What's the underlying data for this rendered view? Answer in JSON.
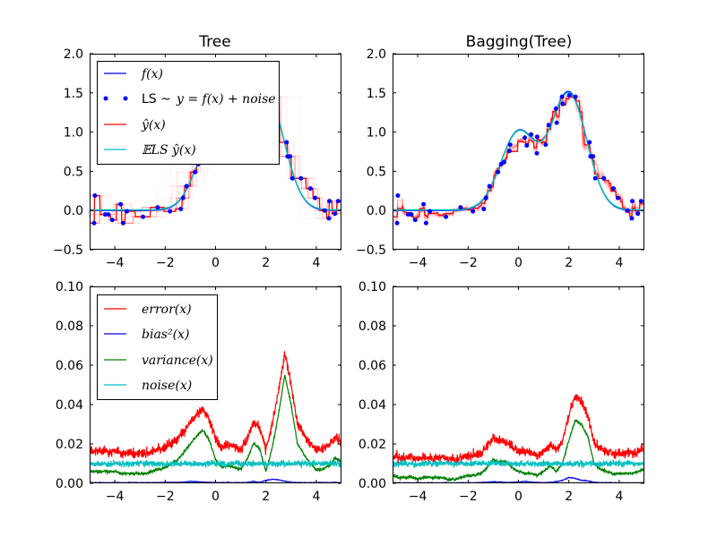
{
  "chart_data": [
    {
      "type": "line",
      "title": "Tree",
      "xlim": [
        -5,
        5
      ],
      "ylim": [
        -0.5,
        2.0
      ],
      "xticks": [
        "−4",
        "−2",
        "0",
        "2",
        "4"
      ],
      "yticks": [
        "−0.5",
        "0.0",
        "0.5",
        "1.0",
        "1.5",
        "2.0"
      ],
      "legend": {
        "placement": "upper-left",
        "entries": [
          {
            "label": "f(x)",
            "color": "#0000ff",
            "style": "line"
          },
          {
            "label_prefix": "LS ~ ",
            "label": "y = f(x) + noise",
            "color": "#0000ff",
            "style": "points"
          },
          {
            "label": "ŷ(x)",
            "color": "#ff0000",
            "style": "line"
          },
          {
            "label": "𝔼LS ŷ(x)",
            "color": "#00bfbf",
            "style": "line"
          }
        ]
      },
      "function": "exp(-x^2) + 1.5*exp(-(x-2)^2)",
      "estimator": "tree"
    },
    {
      "type": "line",
      "title": "Bagging(Tree)",
      "xlim": [
        -5,
        5
      ],
      "ylim": [
        -0.5,
        2.0
      ],
      "xticks": [
        "−4",
        "−2",
        "0",
        "2",
        "4"
      ],
      "yticks": [
        "−0.5",
        "0.0",
        "0.5",
        "1.0",
        "1.5",
        "2.0"
      ],
      "function": "exp(-x^2) + 1.5*exp(-(x-2)^2)",
      "estimator": "bagging"
    },
    {
      "type": "line",
      "xlim": [
        -5,
        5
      ],
      "ylim": [
        0,
        0.1
      ],
      "xticks": [
        "−4",
        "−2",
        "0",
        "2",
        "4"
      ],
      "yticks": [
        "0.00",
        "0.02",
        "0.04",
        "0.06",
        "0.08",
        "0.10"
      ],
      "legend": {
        "placement": "upper-left",
        "entries": [
          {
            "label": "error(x)",
            "color": "#ff0000"
          },
          {
            "label": "bias²(x)",
            "color": "#0000ff"
          },
          {
            "label": "variance(x)",
            "color": "#008000"
          },
          {
            "label": "noise(x)",
            "color": "#00bfbf"
          }
        ]
      },
      "x_grid": [
        -5,
        -4.75,
        -4.5,
        -4.25,
        -4,
        -3.75,
        -3.5,
        -3.25,
        -3,
        -2.75,
        -2.5,
        -2.25,
        -2,
        -1.75,
        -1.5,
        -1.25,
        -1,
        -0.75,
        -0.5,
        -0.25,
        0,
        0.25,
        0.5,
        0.75,
        1,
        1.25,
        1.5,
        1.75,
        2,
        2.25,
        2.5,
        2.75,
        3,
        3.25,
        3.5,
        3.75,
        4,
        4.25,
        4.5,
        4.75,
        5
      ],
      "variance": [
        0.006,
        0.006,
        0.006,
        0.006,
        0.006,
        0.005,
        0.005,
        0.005,
        0.005,
        0.005,
        0.006,
        0.007,
        0.008,
        0.01,
        0.012,
        0.016,
        0.02,
        0.024,
        0.027,
        0.022,
        0.012,
        0.008,
        0.009,
        0.008,
        0.007,
        0.012,
        0.02,
        0.018,
        0.006,
        0.018,
        0.035,
        0.055,
        0.04,
        0.02,
        0.015,
        0.01,
        0.007,
        0.007,
        0.009,
        0.013,
        0.011
      ],
      "bias2": [
        0.0003,
        0.0003,
        0.0003,
        0.0003,
        0.0003,
        0.0003,
        0.0003,
        0.0003,
        0.0003,
        0.0003,
        0.0003,
        0.0003,
        0.0005,
        0.0004,
        0.0004,
        0.0006,
        0.001,
        0.0008,
        0.0006,
        0.0004,
        0.0004,
        0.0003,
        0.0004,
        0.0003,
        0.0003,
        0.0004,
        0.001,
        0.0004,
        0.0015,
        0.002,
        0.0018,
        0.001,
        0.0005,
        0.0003,
        0.0003,
        0.0003,
        0.0003,
        0.0003,
        0.0003,
        0.0004,
        0.0003
      ],
      "noise": 0.01
    },
    {
      "type": "line",
      "xlim": [
        -5,
        5
      ],
      "ylim": [
        0,
        0.1
      ],
      "xticks": [
        "−4",
        "−2",
        "0",
        "2",
        "4"
      ],
      "yticks": [
        "0.00",
        "0.02",
        "0.04",
        "0.06",
        "0.08",
        "0.10"
      ],
      "x_grid": [
        -5,
        -4.75,
        -4.5,
        -4.25,
        -4,
        -3.75,
        -3.5,
        -3.25,
        -3,
        -2.75,
        -2.5,
        -2.25,
        -2,
        -1.75,
        -1.5,
        -1.25,
        -1,
        -0.75,
        -0.5,
        -0.25,
        0,
        0.25,
        0.5,
        0.75,
        1,
        1.25,
        1.5,
        1.75,
        2,
        2.25,
        2.5,
        2.75,
        3,
        3.25,
        3.5,
        3.75,
        4,
        4.25,
        4.5,
        4.75,
        5
      ],
      "variance": [
        0.004,
        0.003,
        0.003,
        0.003,
        0.002,
        0.003,
        0.003,
        0.003,
        0.003,
        0.002,
        0.002,
        0.003,
        0.004,
        0.004,
        0.005,
        0.008,
        0.012,
        0.011,
        0.011,
        0.008,
        0.006,
        0.005,
        0.005,
        0.004,
        0.006,
        0.009,
        0.006,
        0.01,
        0.022,
        0.032,
        0.03,
        0.024,
        0.01,
        0.007,
        0.006,
        0.005,
        0.005,
        0.005,
        0.005,
        0.006,
        0.007
      ],
      "bias2": [
        0.0002,
        0.0002,
        0.0002,
        0.0002,
        0.0002,
        0.0002,
        0.0002,
        0.0002,
        0.0002,
        0.0002,
        0.0002,
        0.0002,
        0.0002,
        0.0003,
        0.0003,
        0.0005,
        0.0008,
        0.0006,
        0.0004,
        0.0004,
        0.0006,
        0.001,
        0.0006,
        0.0004,
        0.0003,
        0.0004,
        0.0008,
        0.0015,
        0.003,
        0.0025,
        0.0015,
        0.0012,
        0.0005,
        0.0003,
        0.0003,
        0.0002,
        0.0002,
        0.0002,
        0.0002,
        0.0002,
        0.0003
      ],
      "noise": 0.01
    }
  ],
  "ls_points": {
    "x": [
      -4.79,
      -4.82,
      -4.38,
      -4.26,
      -4.1,
      -3.77,
      -3.67,
      -3.52,
      -2.88,
      -2.3,
      -1.81,
      -1.38,
      -1.29,
      -1.15,
      -0.81,
      -0.69,
      -0.57,
      -0.36,
      -0.33,
      0.25,
      0.33,
      0.5,
      0.73,
      0.74,
      1.08,
      1.2,
      1.52,
      1.49,
      1.76,
      1.73,
      2.02,
      2.26,
      2.82,
      2.86,
      2.96,
      3.05,
      3.39,
      3.77,
      3.95,
      4.33,
      4.5,
      4.52,
      4.74,
      4.87
    ],
    "y": [
      0.19,
      -0.16,
      -0.05,
      -0.05,
      -0.12,
      0.08,
      -0.16,
      -0.01,
      -0.08,
      0.04,
      -0.01,
      0.02,
      0.16,
      0.31,
      0.49,
      0.59,
      0.62,
      0.76,
      0.84,
      0.93,
      0.83,
      0.97,
      0.73,
      0.94,
      0.84,
      1.09,
      1.12,
      1.3,
      1.36,
      1.45,
      1.47,
      1.45,
      0.87,
      0.69,
      0.69,
      0.41,
      0.41,
      0.28,
      0.16,
      0.0,
      -0.1,
      0.12,
      -0.04,
      0.12
    ]
  }
}
